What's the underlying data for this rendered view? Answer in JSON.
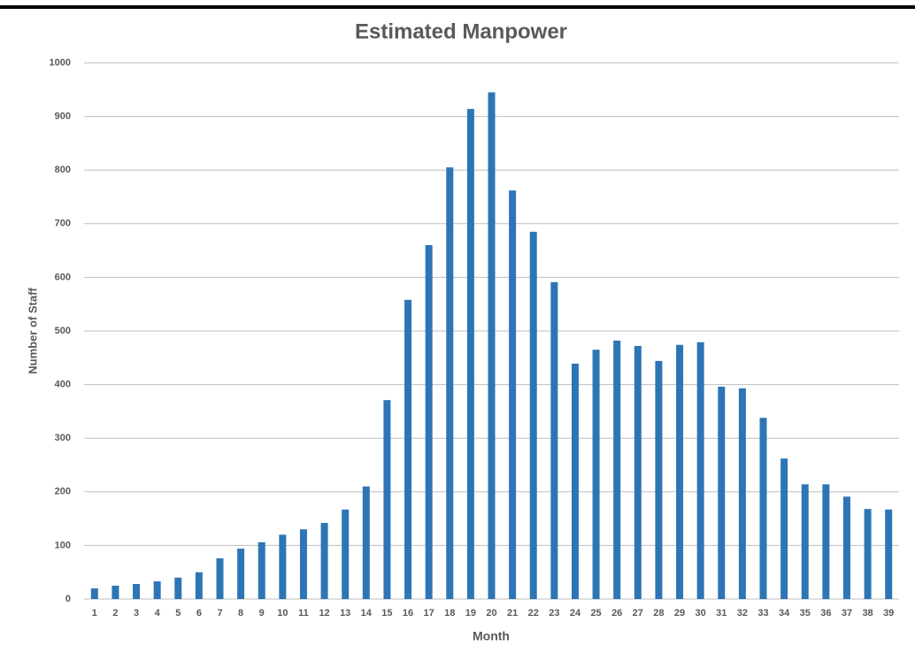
{
  "chart_data": {
    "type": "bar",
    "title": "Estimated Manpower",
    "x_label": "Month",
    "y_label": "Number of Staff",
    "categories": [
      "1",
      "2",
      "3",
      "4",
      "5",
      "6",
      "7",
      "8",
      "9",
      "10",
      "11",
      "12",
      "13",
      "14",
      "15",
      "16",
      "17",
      "18",
      "19",
      "20",
      "21",
      "22",
      "23",
      "24",
      "25",
      "26",
      "27",
      "28",
      "29",
      "30",
      "31",
      "32",
      "33",
      "34",
      "35",
      "36",
      "37",
      "38",
      "39"
    ],
    "values": [
      20,
      25,
      28,
      33,
      40,
      50,
      76,
      94,
      106,
      120,
      130,
      142,
      167,
      210,
      371,
      558,
      660,
      805,
      914,
      945,
      762,
      685,
      591,
      439,
      465,
      482,
      472,
      444,
      474,
      479,
      396,
      393,
      338,
      262,
      214,
      214,
      191,
      168,
      167
    ],
    "color": "#2e75b6",
    "ylim": [
      0,
      1000
    ],
    "yticks": [
      0,
      100,
      200,
      300,
      400,
      500,
      600,
      700,
      800,
      900,
      1000
    ],
    "grid": true
  }
}
